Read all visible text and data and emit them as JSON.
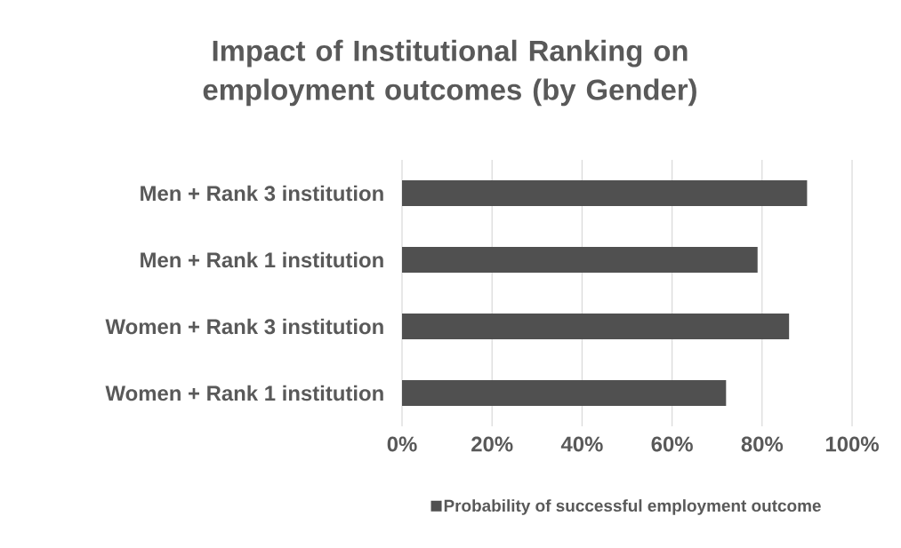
{
  "chart_data": {
    "type": "bar",
    "orientation": "horizontal",
    "title": "Impact of Institutional Ranking on employment outcomes (by Gender)",
    "categories": [
      "Men + Rank 3 institution",
      "Men + Rank 1 institution",
      "Women + Rank 3 institution",
      "Women + Rank 1 institution"
    ],
    "series": [
      {
        "name": "Probability of successful employment outcome",
        "color": "#505050",
        "values": [
          90,
          79,
          86,
          72
        ]
      }
    ],
    "xlim": [
      0,
      100
    ],
    "xticks": [
      {
        "value": 0,
        "label": "0%"
      },
      {
        "value": 20,
        "label": "20%"
      },
      {
        "value": 40,
        "label": "40%"
      },
      {
        "value": 60,
        "label": "60%"
      },
      {
        "value": 80,
        "label": "80%"
      },
      {
        "value": 100,
        "label": "100%"
      }
    ],
    "grid": "x",
    "legend": "bottom"
  }
}
